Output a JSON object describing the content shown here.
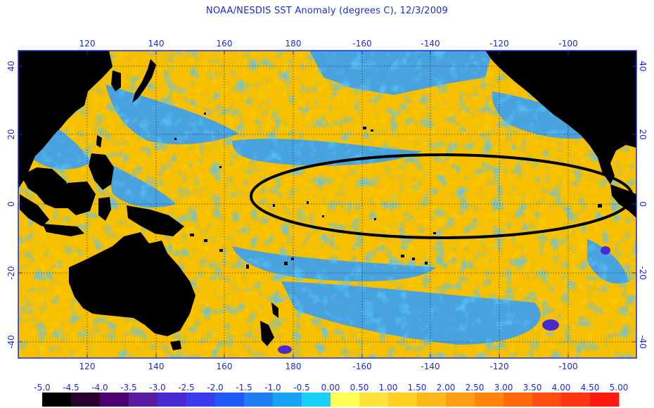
{
  "title": "NOAA/NESDIS SST Anomaly (degrees C), 12/3/2009",
  "map": {
    "projection": "equirectangular",
    "lon_ticks_top": [
      "120",
      "140",
      "160",
      "180",
      "-160",
      "-140",
      "-120",
      "-100"
    ],
    "lon_ticks_bottom": [
      "120",
      "140",
      "160",
      "180",
      "-160",
      "-140",
      "-120",
      "-100"
    ],
    "lat_ticks_left": [
      "40",
      "20",
      "0",
      "-20",
      "-40"
    ],
    "lat_ticks_right": [
      "40",
      "20",
      "0",
      "-20",
      "-40"
    ],
    "annotation": "black ellipse highlighting warm anomaly in the equatorial Pacific",
    "colors": {
      "land": "#000000",
      "frame": "#1a2bd6",
      "gridline": "#000000",
      "ellipse": "#000000",
      "warm_background": "#f5b400",
      "cool_patch": "#3aa0f0"
    }
  },
  "colorbar": {
    "labels": [
      "-5.0",
      "-4.5",
      "-4.0",
      "-3.5",
      "-3.0",
      "-2.5",
      "-2.0",
      "-1.5",
      "-1.0",
      "-0.5",
      "0.00",
      "0.50",
      "1.00",
      "1.50",
      "2.00",
      "2.50",
      "3.00",
      "3.50",
      "4.00",
      "4.50",
      "5.00"
    ],
    "colors": [
      "#000000",
      "#2a0030",
      "#4a0070",
      "#5a1aa0",
      "#4a2ad0",
      "#3a3af0",
      "#1f5af6",
      "#1f7ef2",
      "#1aa2f6",
      "#18d0f8",
      "#ffff55",
      "#ffe23a",
      "#ffcf24",
      "#ffb81a",
      "#ff9e12",
      "#ff850e",
      "#ff6a0e",
      "#ff4f10",
      "#ff3510",
      "#ff1a10"
    ]
  }
}
